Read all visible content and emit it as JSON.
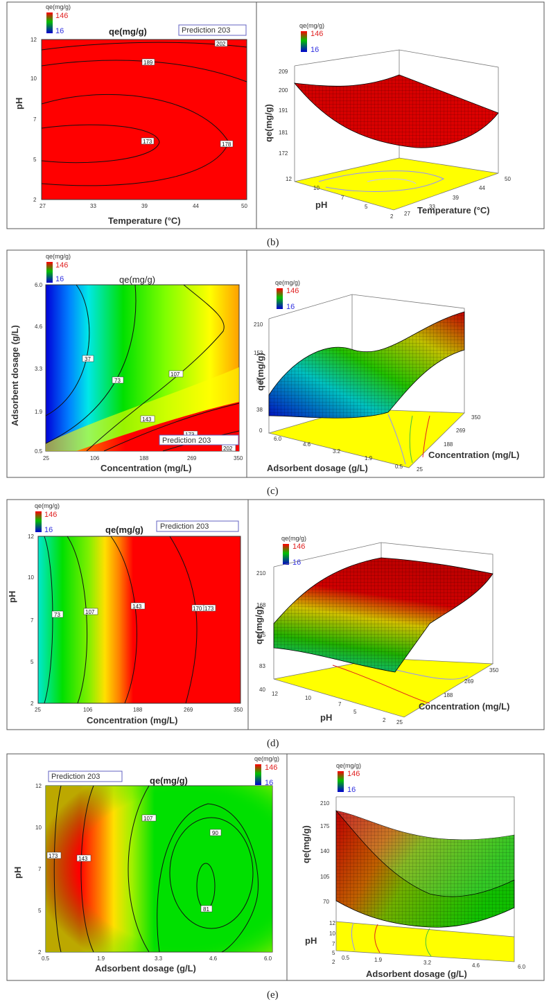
{
  "legend": {
    "title": "qe(mg/g)",
    "max": "146",
    "min": "16"
  },
  "colors": {
    "red": "#ff0000",
    "yellow": "#ffff00",
    "green": "#00e000",
    "cyan": "#00e8e8",
    "blue": "#0000e0",
    "frame": "#555555"
  },
  "chart_data": [
    {
      "id": "b",
      "caption": "(b)",
      "type": "heatmap",
      "contour": {
        "title": "qe(mg/g)",
        "prediction": "Prediction  203",
        "xlabel": "Temperature (°C)",
        "ylabel": "pH",
        "xticks": [
          "27",
          "33",
          "39",
          "44",
          "50"
        ],
        "yticks": [
          "2",
          "5",
          "7",
          "10",
          "12"
        ],
        "contour_labels": [
          "202",
          "189",
          "173",
          "178"
        ]
      },
      "surface": {
        "zlabel": "qe(mg/g)",
        "xlabel": "Temperature (°C)",
        "ylabel": "pH",
        "zticks": [
          "209",
          "200",
          "191",
          "181",
          "172"
        ],
        "xticks": [
          "27",
          "33",
          "39",
          "44",
          "50"
        ],
        "yticks": [
          "2",
          "5",
          "7",
          "10",
          "12"
        ]
      }
    },
    {
      "id": "c",
      "caption": "(c)",
      "type": "heatmap",
      "contour": {
        "title": "qe(mg/g)",
        "prediction": "Prediction  203",
        "xlabel": "Concentration (mg/L)",
        "ylabel": "Adsorbent dosage (g/L)",
        "xticks": [
          "25",
          "106",
          "188",
          "269",
          "350"
        ],
        "yticks": [
          "0.5",
          "1.9",
          "3.3",
          "4.6",
          "6.0"
        ],
        "contour_labels": [
          "37",
          "73",
          "107",
          "143",
          "173",
          "202"
        ]
      },
      "surface": {
        "zlabel": "qe(mg/g)",
        "xlabel": "Concentration (mg/L)",
        "ylabel": "Adsorbent dosage (g/L)",
        "zticks": [
          "210",
          "153",
          "95",
          "38",
          "0"
        ],
        "xticks": [
          "25",
          "188",
          "269",
          "350"
        ],
        "yticks": [
          "6.0",
          "4.6",
          "3.2",
          "1.9",
          "0.5"
        ]
      }
    },
    {
      "id": "d",
      "caption": "(d)",
      "type": "heatmap",
      "contour": {
        "title": "qe(mg/g)",
        "prediction": "Prediction  203",
        "xlabel": "Concentration (mg/L)",
        "ylabel": "pH",
        "xticks": [
          "25",
          "106",
          "188",
          "269",
          "350"
        ],
        "yticks": [
          "2",
          "5",
          "7",
          "10",
          "12"
        ],
        "contour_labels": [
          "73",
          "107",
          "143",
          "170",
          "173"
        ]
      },
      "surface": {
        "zlabel": "qe(mg/g)",
        "xlabel": "Concentration (mg/L)",
        "ylabel": "pH",
        "zticks": [
          "210",
          "168",
          "125",
          "83",
          "40"
        ],
        "xticks": [
          "25",
          "188",
          "269",
          "350"
        ],
        "yticks": [
          "12",
          "10",
          "7",
          "5",
          "2"
        ]
      }
    },
    {
      "id": "e",
      "caption": "(e)",
      "type": "heatmap",
      "contour": {
        "title": "qe(mg/g)",
        "prediction": "Prediction  203",
        "xlabel": "Adsorbent dosage (g/L)",
        "ylabel": "pH",
        "xticks": [
          "0.5",
          "1.9",
          "3.3",
          "4.6",
          "6.0"
        ],
        "yticks": [
          "2",
          "5",
          "7",
          "10",
          "12"
        ],
        "contour_labels": [
          "173",
          "143",
          "107",
          "90",
          "81"
        ]
      },
      "surface": {
        "zlabel": "qe(mg/g)",
        "xlabel": "Adsorbent dosage (g/L)",
        "ylabel": "pH",
        "zticks": [
          "210",
          "175",
          "140",
          "105",
          "70"
        ],
        "xticks": [
          "0.5",
          "1.9",
          "3.2",
          "4.6",
          "6.0"
        ],
        "yticks": [
          "12",
          "10",
          "7",
          "5",
          "2"
        ]
      }
    }
  ]
}
